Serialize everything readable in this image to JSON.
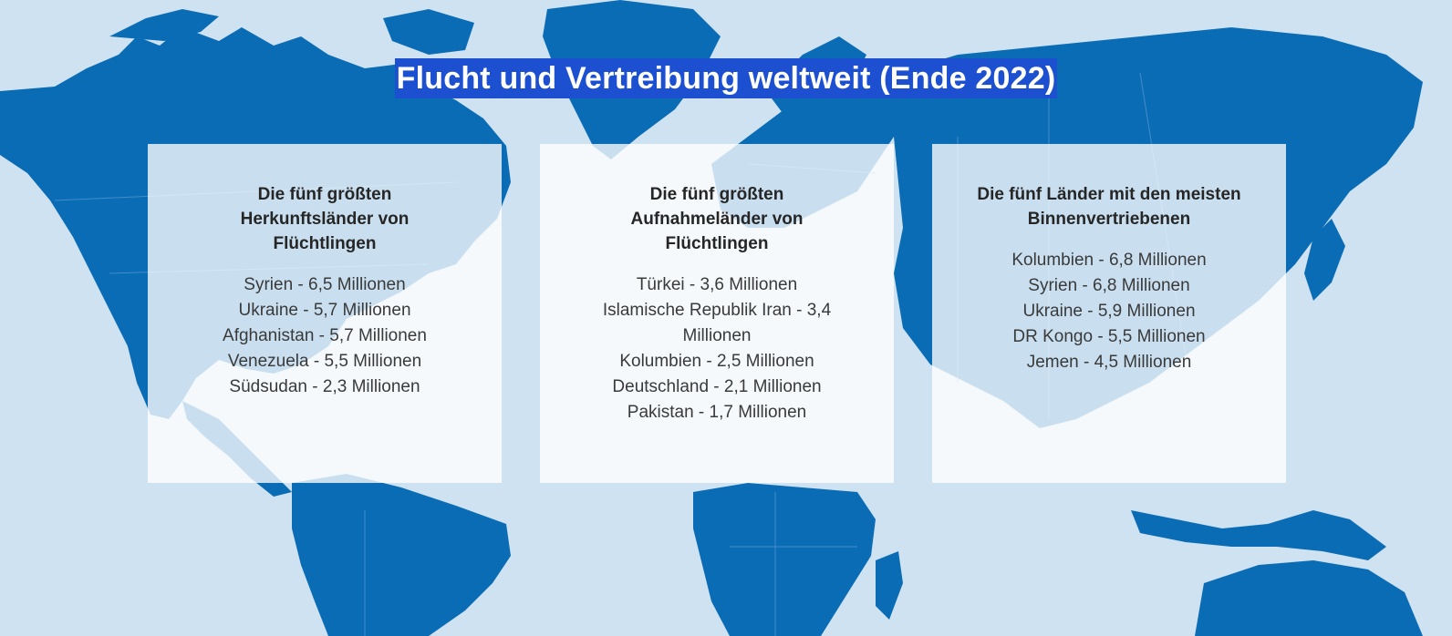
{
  "title": "Flucht und Vertreibung weltweit (Ende 2022)",
  "colors": {
    "ocean": "#cfe2f1",
    "land": "#0a6cb5",
    "title_background": "#1d4fd1",
    "card_background": "rgba(255,255,255,0.78)"
  },
  "cards": [
    {
      "heading": "Die fünf größten Herkunftsländer von Flüchtlingen",
      "items": [
        "Syrien - 6,5 Millionen",
        "Ukraine - 5,7 Millionen",
        "Afghanistan - 5,7 Millionen",
        "Venezuela - 5,5 Millionen",
        "Südsudan - 2,3 Millionen"
      ]
    },
    {
      "heading": "Die fünf größten Aufnahmeländer von Flüchtlingen",
      "items": [
        "Türkei - 3,6 Millionen",
        "Islamische Republik Iran - 3,4 Millionen",
        "Kolumbien - 2,5 Millionen",
        "Deutschland - 2,1 Millionen",
        "Pakistan - 1,7 Millionen"
      ]
    },
    {
      "heading": "Die fünf Länder mit den meisten Binnenvertriebenen",
      "items": [
        "Kolumbien - 6,8 Millionen",
        "Syrien - 6,8 Millionen",
        "Ukraine - 5,9 Millionen",
        "DR Kongo - 5,5 Millionen",
        "Jemen - 4,5 Millionen"
      ]
    }
  ]
}
